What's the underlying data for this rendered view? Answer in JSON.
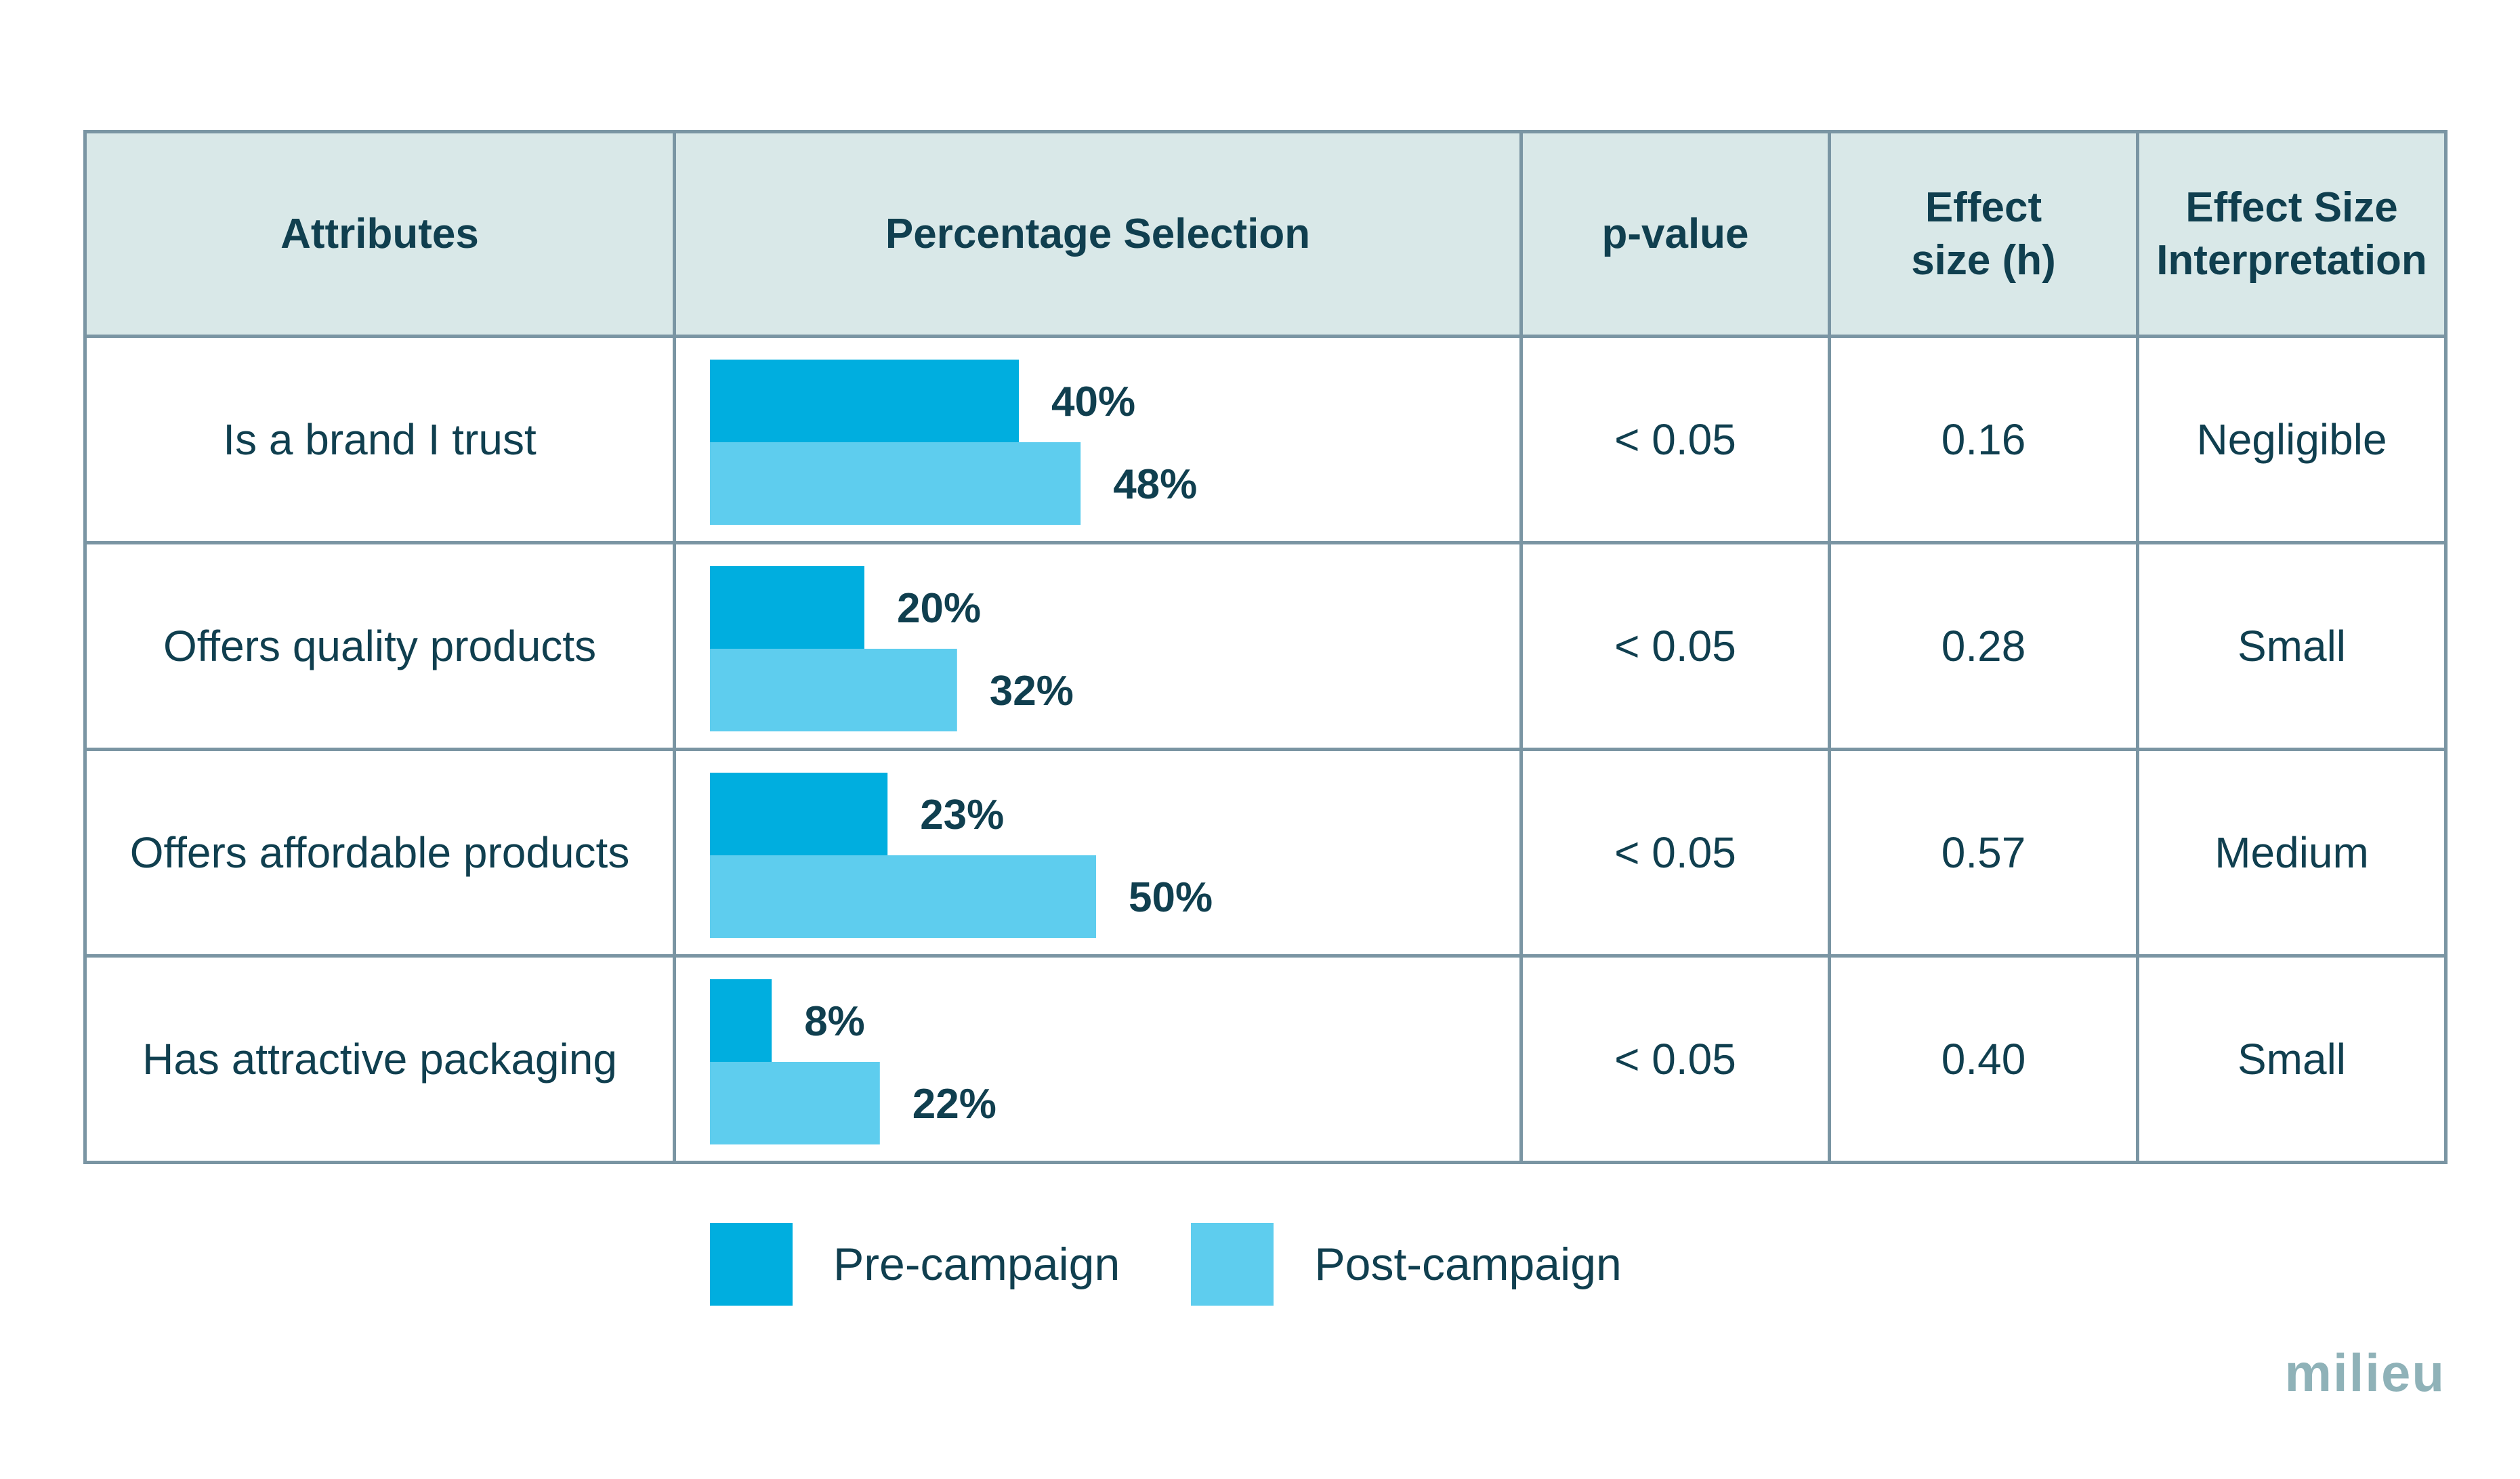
{
  "headers": {
    "attributes": "Attributes",
    "percentage": "Percentage Selection",
    "pvalue": "p-value",
    "effect_size": "Effect size (h)",
    "interpretation": "Effect Size Interpretation"
  },
  "rows": [
    {
      "attribute": "Is a brand I trust",
      "pre": 40,
      "post": 48,
      "pre_label": "40%",
      "post_label": "48%",
      "pvalue": "< 0.05",
      "effect": "0.16",
      "interpretation": "Negligible"
    },
    {
      "attribute": "Offers quality products",
      "pre": 20,
      "post": 32,
      "pre_label": "20%",
      "post_label": "32%",
      "pvalue": "< 0.05",
      "effect": "0.28",
      "interpretation": "Small"
    },
    {
      "attribute": "Offers affordable products",
      "pre": 23,
      "post": 50,
      "pre_label": "23%",
      "post_label": "50%",
      "pvalue": "< 0.05",
      "effect": "0.57",
      "interpretation": "Medium"
    },
    {
      "attribute": "Has attractive packaging",
      "pre": 8,
      "post": 22,
      "pre_label": "8%",
      "post_label": "22%",
      "pvalue": "< 0.05",
      "effect": "0.40",
      "interpretation": "Small"
    }
  ],
  "legend": {
    "pre_label": "Pre-campaign",
    "post_label": "Post-campaign"
  },
  "colors": {
    "pre": "#00aedf",
    "post": "#5ecdee",
    "header_bg": "#d9e8e8",
    "border": "#7a95a3",
    "text": "#103f4f",
    "logo": "#8fb2b8"
  },
  "brand": "milieu",
  "chart_data": {
    "type": "bar",
    "orientation": "horizontal",
    "categories": [
      "Is a brand I trust",
      "Offers quality products",
      "Offers affordable products",
      "Has attractive packaging"
    ],
    "series": [
      {
        "name": "Pre-campaign",
        "values": [
          40,
          20,
          23,
          8
        ]
      },
      {
        "name": "Post-campaign",
        "values": [
          48,
          32,
          50,
          22
        ]
      }
    ],
    "unit": "%",
    "legend_position": "bottom"
  }
}
